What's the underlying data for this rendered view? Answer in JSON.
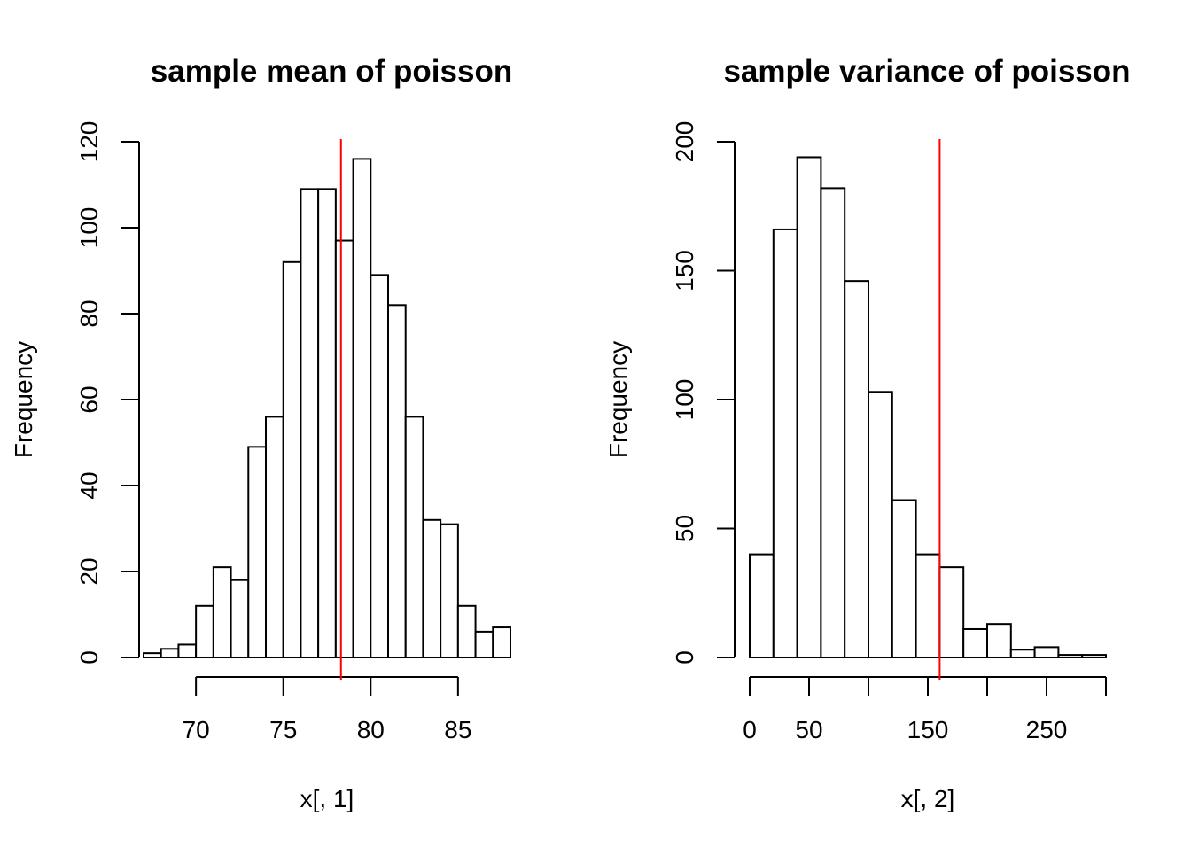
{
  "chart_data": [
    {
      "type": "bar",
      "title": "sample mean of poisson",
      "xlabel": "x[, 1]",
      "ylabel": "Frequency",
      "bin_edges": [
        67,
        68,
        69,
        70,
        71,
        72,
        73,
        74,
        75,
        76,
        77,
        78,
        79,
        80,
        81,
        82,
        83,
        84,
        85,
        86,
        87,
        88
      ],
      "values": [
        1,
        2,
        3,
        12,
        21,
        18,
        49,
        56,
        92,
        109,
        109,
        97,
        116,
        89,
        82,
        56,
        32,
        31,
        12,
        6,
        7
      ],
      "xlim": [
        67,
        88
      ],
      "ylim": [
        0,
        120
      ],
      "x_ticks": [
        70,
        75,
        80,
        85
      ],
      "y_ticks": [
        0,
        20,
        40,
        60,
        80,
        100,
        120
      ],
      "reference_line": {
        "x": 78.3,
        "color": "#ff0000"
      },
      "bar_fill": "#ffffff",
      "bar_stroke": "#000000",
      "grid": false
    },
    {
      "type": "bar",
      "title": "sample variance of poisson",
      "xlabel": "x[, 2]",
      "ylabel": "Frequency",
      "bin_edges": [
        0,
        20,
        40,
        60,
        80,
        100,
        120,
        140,
        160,
        180,
        200,
        220,
        240,
        260,
        280,
        300
      ],
      "values": [
        40,
        166,
        194,
        182,
        146,
        103,
        61,
        40,
        35,
        11,
        13,
        3,
        4,
        1,
        1
      ],
      "xlim": [
        0,
        300
      ],
      "ylim": [
        0,
        200
      ],
      "x_ticks": [
        0,
        50,
        100,
        150,
        200,
        250,
        300
      ],
      "x_tick_labels": [
        "0",
        "50",
        "",
        "150",
        "",
        "250",
        ""
      ],
      "y_ticks": [
        0,
        50,
        100,
        150,
        200
      ],
      "reference_line": {
        "x": 160,
        "color": "#ff0000"
      },
      "bar_fill": "#ffffff",
      "bar_stroke": "#000000",
      "grid": false
    }
  ]
}
